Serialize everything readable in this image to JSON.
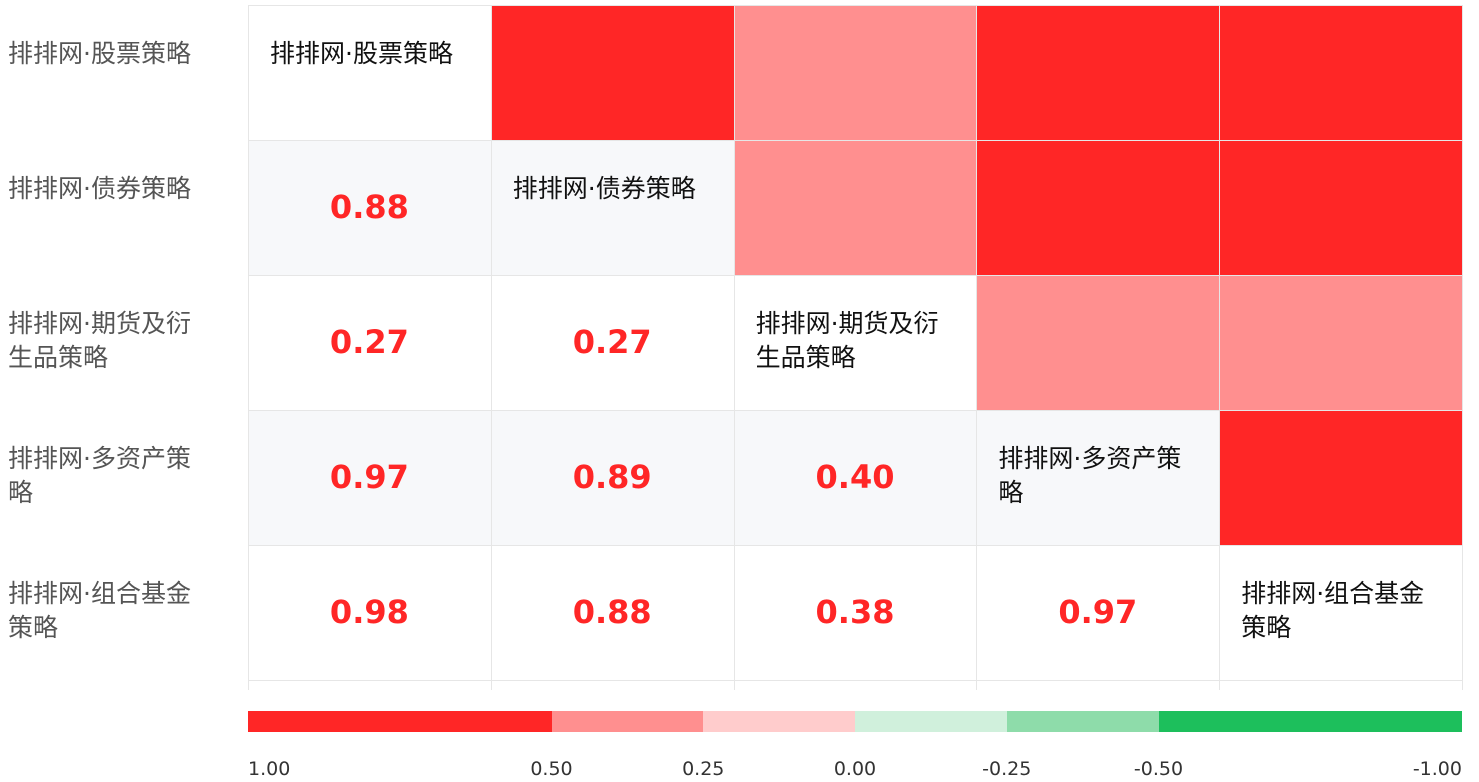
{
  "chart_data": {
    "type": "heatmap",
    "labels": [
      "排排网·股票策略",
      "排排网·债券策略",
      "排排网·期货及衍生品策略",
      "排排网·多资产策略",
      "排排网·组合基金策略"
    ],
    "correlations": [
      [],
      [
        0.88
      ],
      [
        0.27,
        0.27
      ],
      [
        0.97,
        0.89,
        0.4
      ],
      [
        0.98,
        0.88,
        0.38,
        0.97
      ]
    ],
    "value_labels": [
      [],
      [
        "0.88"
      ],
      [
        "0.27",
        "0.27"
      ],
      [
        "0.97",
        "0.89",
        "0.40"
      ],
      [
        "0.98",
        "0.88",
        "0.38",
        "0.97"
      ]
    ],
    "legend": {
      "ticks": [
        {
          "value": 1,
          "label": "1.00"
        },
        {
          "value": 0.5,
          "label": "0.50"
        },
        {
          "value": 0.25,
          "label": "0.25"
        },
        {
          "value": 0,
          "label": "0.00"
        },
        {
          "value": -0.25,
          "label": "-0.25"
        },
        {
          "value": -0.5,
          "label": "-0.50"
        },
        {
          "value": -1,
          "label": "-1.00"
        }
      ],
      "colors": [
        "#ff2626",
        "#ff8f8f",
        "#ffcccc",
        "#d0f0dc",
        "#8edcaa",
        "#1dbf5c"
      ]
    }
  }
}
